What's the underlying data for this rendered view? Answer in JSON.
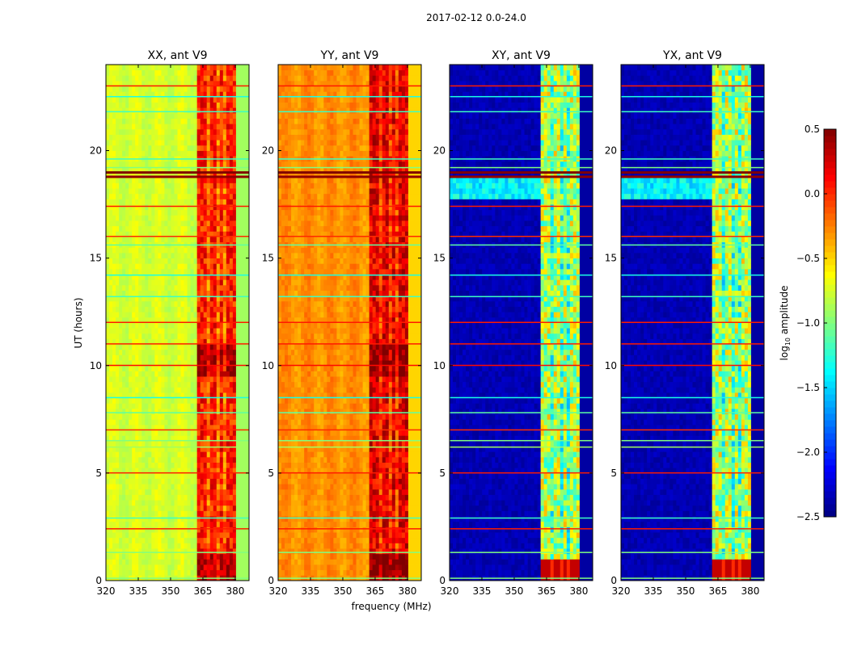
{
  "chart_data": {
    "type": "heatmap",
    "suptitle": "2017-02-12 0.0-24.0",
    "xlabel": "frequency (MHz)",
    "ylabel": "UT (hours)",
    "xlim": [
      320,
      386.4
    ],
    "ylim": [
      0,
      24
    ],
    "xticks": [
      "320",
      "335",
      "350",
      "365",
      "380"
    ],
    "yticks": [
      "0",
      "5",
      "10",
      "15",
      "20"
    ],
    "colorbar": {
      "label_prefix": "log",
      "label_sub": "10",
      "label_suffix": " amplitude",
      "vmin": -2.5,
      "vmax": 0.5,
      "colormap": "jet",
      "ticks": [
        "0.5",
        "0.0",
        "−0.5",
        "−1.0",
        "−1.5",
        "−2.0",
        "−2.5"
      ]
    },
    "band": {
      "start_mhz": 363,
      "end_mhz": 381,
      "gaps_mhz": [
        367.5,
        371.5,
        375.5
      ]
    },
    "panels": [
      {
        "title": "XX, ant V9",
        "background": -0.75,
        "band_level": 0.05,
        "edge_level": -0.9
      },
      {
        "title": "YY, ant V9",
        "background": -0.3,
        "band_level": 0.2,
        "edge_level": -0.5
      },
      {
        "title": "XY, ant V9",
        "background": -2.35,
        "band_level": -0.85,
        "edge_level": -2.4
      },
      {
        "title": "YX, ant V9",
        "background": -2.35,
        "band_level": -0.85,
        "edge_level": -2.4
      }
    ],
    "flagged_rows": [
      {
        "ut": 23.0,
        "value": 0.05
      },
      {
        "ut": 22.5,
        "value": -1.3
      },
      {
        "ut": 21.8,
        "value": -1.2
      },
      {
        "ut": 19.6,
        "value": -1.2
      },
      {
        "ut": 19.2,
        "value": -1.0
      },
      {
        "ut": 19.0,
        "value": 0.5
      },
      {
        "ut": 18.8,
        "value": 0.45
      },
      {
        "ut": 17.4,
        "value": 0.05
      },
      {
        "ut": 16.0,
        "value": 0.0
      },
      {
        "ut": 15.6,
        "value": -1.1
      },
      {
        "ut": 14.2,
        "value": -1.3
      },
      {
        "ut": 13.2,
        "value": -1.2
      },
      {
        "ut": 12.0,
        "value": 0.05
      },
      {
        "ut": 11.0,
        "value": 0.05
      },
      {
        "ut": 10.0,
        "value": 0.1
      },
      {
        "ut": 8.5,
        "value": -1.3
      },
      {
        "ut": 7.8,
        "value": -1.1
      },
      {
        "ut": 7.0,
        "value": 0.0
      },
      {
        "ut": 6.5,
        "value": -1.0
      },
      {
        "ut": 6.2,
        "value": -0.9
      },
      {
        "ut": 5.0,
        "value": 0.05
      },
      {
        "ut": 2.9,
        "value": -1.2
      },
      {
        "ut": 2.4,
        "value": 0.05
      },
      {
        "ut": 1.3,
        "value": -1.0
      },
      {
        "ut": 0.1,
        "value": -1.0
      }
    ]
  }
}
